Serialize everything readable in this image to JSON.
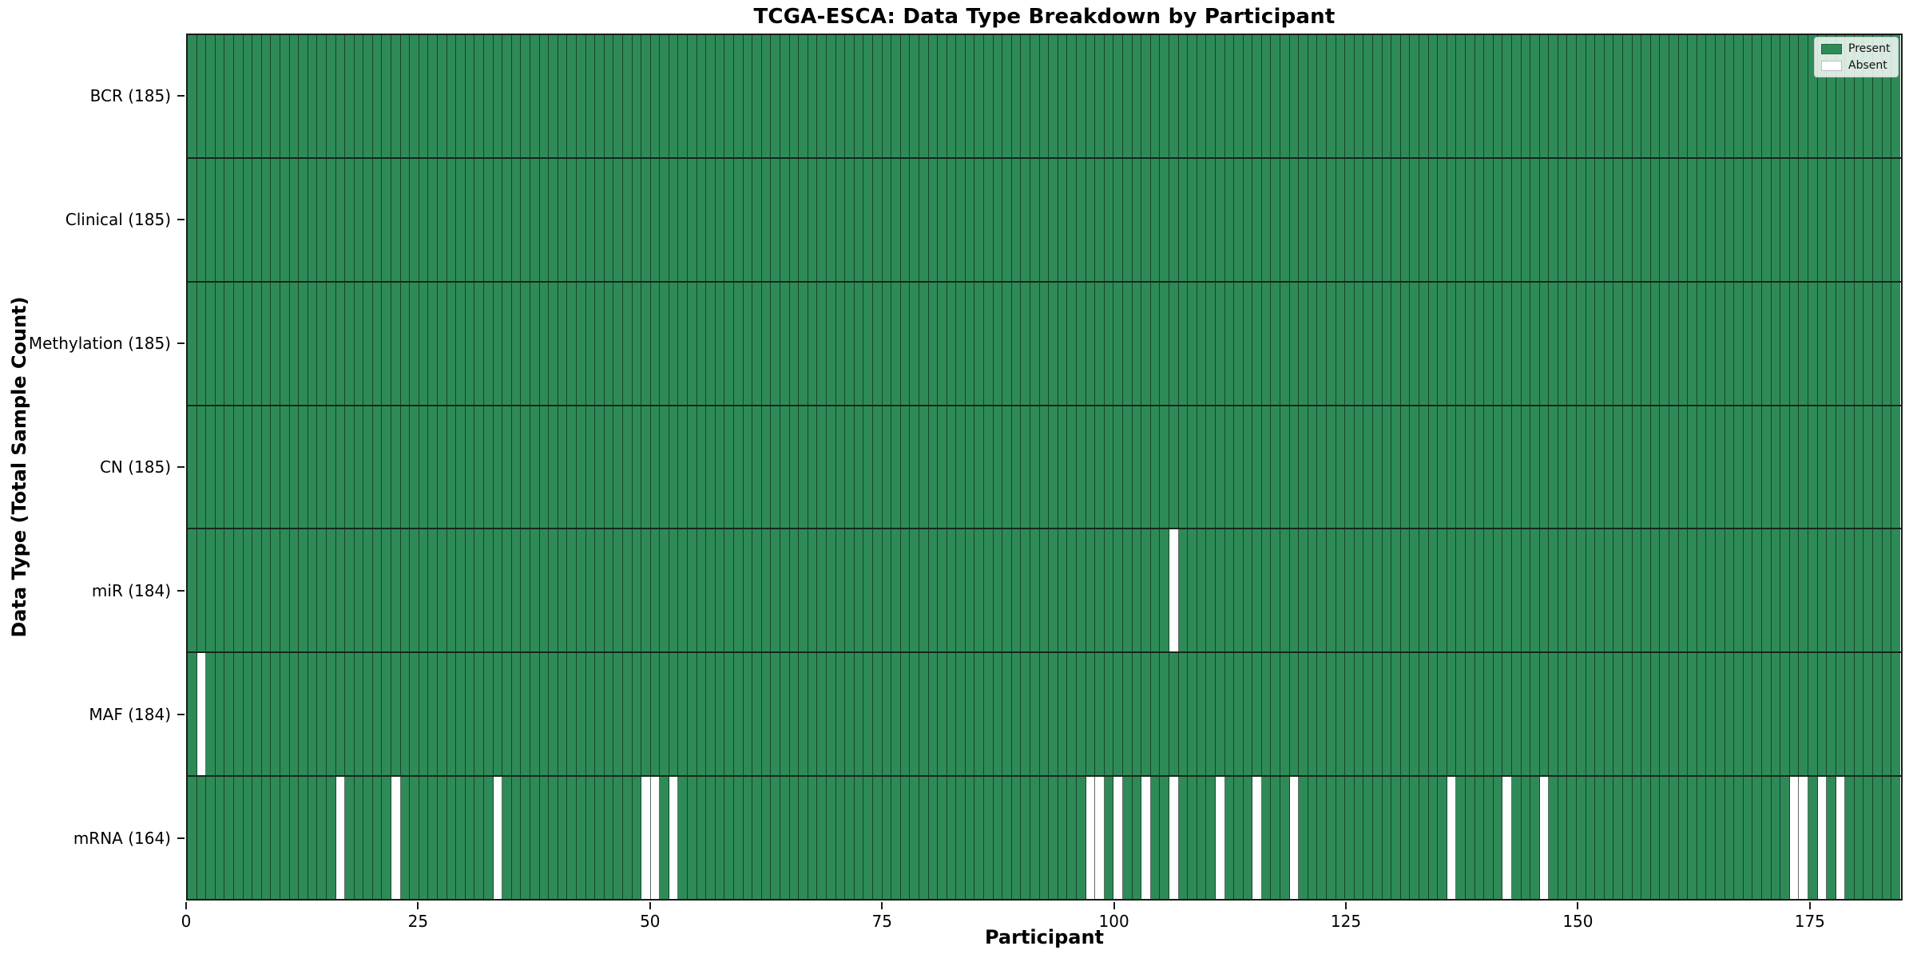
{
  "chart_data": {
    "type": "heatmap",
    "title": "TCGA-ESCA: Data Type Breakdown by Participant",
    "xlabel": "Participant",
    "ylabel": "Data Type (Total Sample Count)",
    "n_participants": 185,
    "x_tick_values": [
      0,
      25,
      50,
      75,
      100,
      125,
      150,
      175
    ],
    "x_tick_labels": [
      "0",
      "25",
      "50",
      "75",
      "100",
      "125",
      "150",
      "175"
    ],
    "colors": {
      "present": "#2e8b57",
      "absent": "#ffffff"
    },
    "legend": {
      "position": "upper right",
      "entries": [
        {
          "label": "Present",
          "color": "#2e8b57"
        },
        {
          "label": "Absent",
          "color": "#ffffff"
        }
      ]
    },
    "rows": [
      {
        "name": "BCR",
        "total": 185,
        "tick_label": "BCR (185)",
        "absent_participants": []
      },
      {
        "name": "Clinical",
        "total": 185,
        "tick_label": "Clinical (185)",
        "absent_participants": []
      },
      {
        "name": "Methylation",
        "total": 185,
        "tick_label": "Methylation (185)",
        "absent_participants": []
      },
      {
        "name": "CN",
        "total": 185,
        "tick_label": "CN (185)",
        "absent_participants": []
      },
      {
        "name": "miR",
        "total": 184,
        "tick_label": "miR (184)",
        "absent_participants": [
          106
        ]
      },
      {
        "name": "MAF",
        "total": 184,
        "tick_label": "MAF (184)",
        "absent_participants": [
          1
        ]
      },
      {
        "name": "mRNA",
        "total": 164,
        "tick_label": "mRNA (164)",
        "absent_participants": [
          16,
          22,
          33,
          49,
          50,
          52,
          97,
          98,
          100,
          103,
          106,
          111,
          115,
          119,
          136,
          142,
          146,
          173,
          174,
          176,
          178
        ]
      }
    ]
  }
}
